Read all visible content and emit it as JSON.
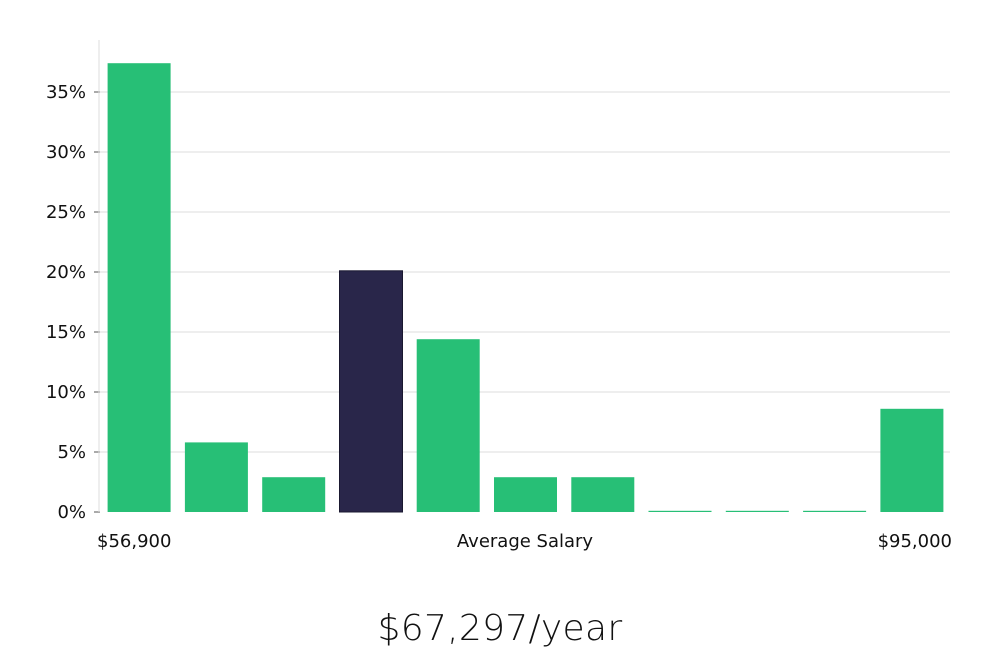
{
  "chart_data": {
    "type": "bar",
    "title": "",
    "xlabel": "Average Salary",
    "ylabel": "",
    "x_min_label": "$56,900",
    "x_max_label": "$95,000",
    "values": [
      37.4,
      5.8,
      2.9,
      20.1,
      14.4,
      2.9,
      2.9,
      0.1,
      0.1,
      0.1,
      8.6
    ],
    "highlight_index": 3,
    "ylim": [
      0,
      39
    ],
    "yticks": [
      0,
      5,
      10,
      15,
      20,
      25,
      30,
      35
    ],
    "ytick_labels": [
      "0%",
      "5%",
      "10%",
      "15%",
      "20%",
      "25%",
      "30%",
      "35%"
    ],
    "grid": true,
    "colors": {
      "bar": "#27bf76",
      "highlight": "#29264a",
      "grid": "#dddddd"
    }
  },
  "summary": {
    "salary_text": "$67,297/year"
  }
}
